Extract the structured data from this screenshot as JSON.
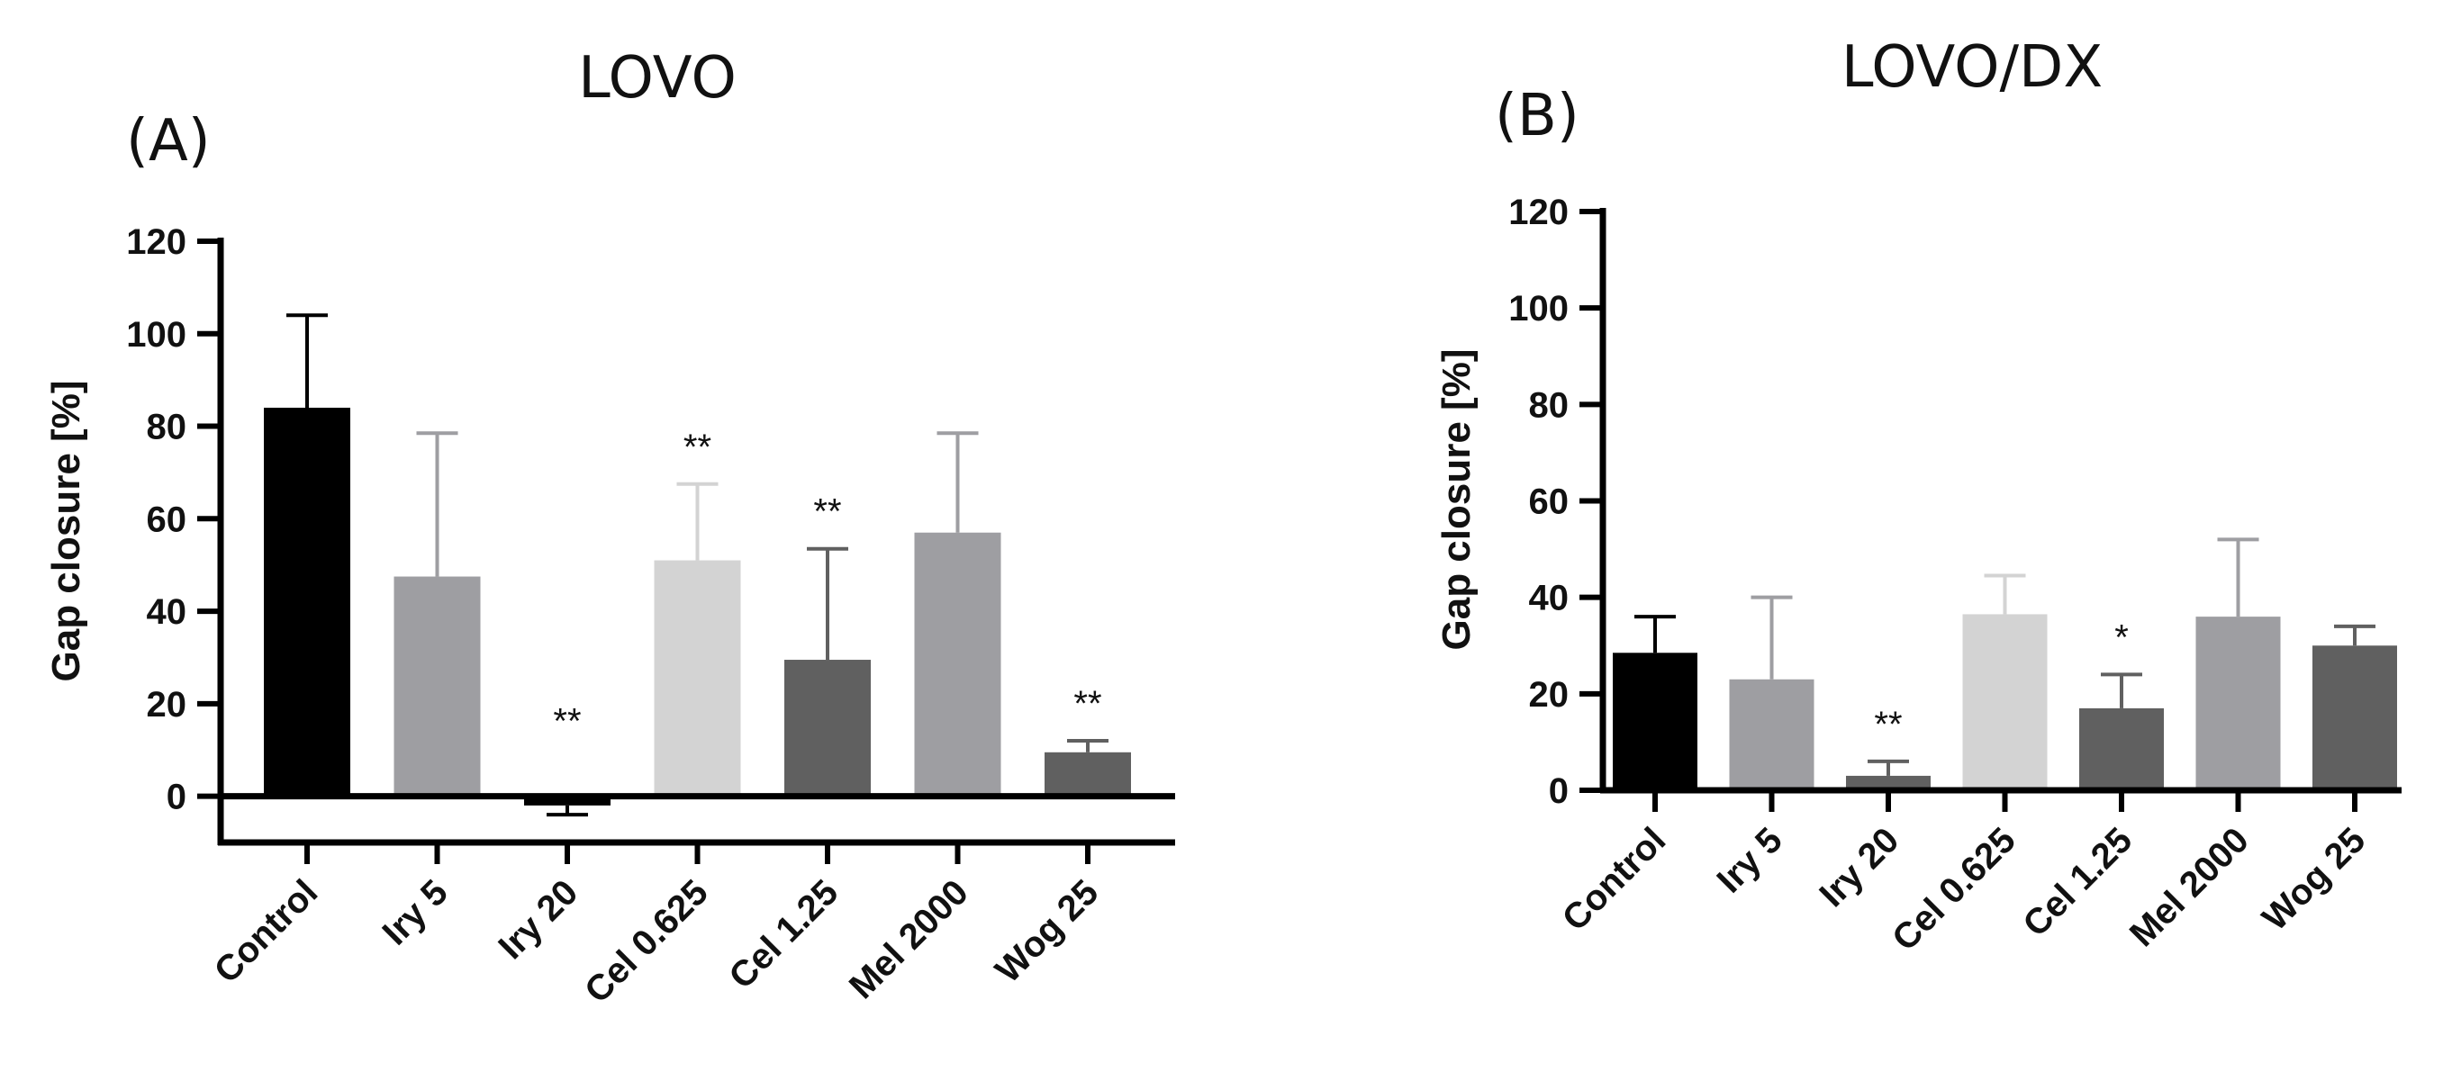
{
  "chart_data": [
    {
      "type": "bar",
      "panel_label": "(A)",
      "title": "LOVO",
      "xlabel": "",
      "ylabel": "Gap closure [%]",
      "ylim": [
        -10,
        120
      ],
      "yticks": [
        0,
        20,
        40,
        60,
        80,
        100,
        120
      ],
      "grid": false,
      "categories": [
        "Control",
        "Iry 5",
        "Iry 20",
        "Cel 0.625",
        "Cel 1.25",
        "Mel 2000",
        "Wog 25"
      ],
      "values": [
        84,
        47.5,
        -2,
        51,
        29.5,
        57,
        9.5
      ],
      "errors": [
        20,
        31,
        2,
        16.5,
        24,
        21.5,
        2.5
      ],
      "colors": [
        "#000000",
        "#9e9ea2",
        "#000000",
        "#d3d3d3",
        "#606060",
        "#9e9ea2",
        "#606060"
      ],
      "significance": [
        "",
        "",
        "**",
        "**",
        "**",
        "",
        "**"
      ]
    },
    {
      "type": "bar",
      "panel_label": "(B)",
      "title": "LOVO/DX",
      "xlabel": "",
      "ylabel": "Gap closure [%]",
      "ylim": [
        0,
        120
      ],
      "yticks": [
        0,
        20,
        40,
        60,
        80,
        100,
        120
      ],
      "grid": false,
      "categories": [
        "Control",
        "Iry 5",
        "Iry 20",
        "Cel 0.625",
        "Cel 1.25",
        "Mel 2000",
        "Wog 25"
      ],
      "values": [
        28.5,
        23,
        3,
        36.5,
        17,
        36,
        30
      ],
      "errors": [
        7.5,
        17,
        3,
        8,
        7,
        16,
        4
      ],
      "colors": [
        "#000000",
        "#9e9ea2",
        "#606060",
        "#d3d3d3",
        "#606060",
        "#9e9ea2",
        "#606060"
      ],
      "significance": [
        "",
        "",
        "**",
        "",
        "*",
        "",
        ""
      ]
    }
  ]
}
